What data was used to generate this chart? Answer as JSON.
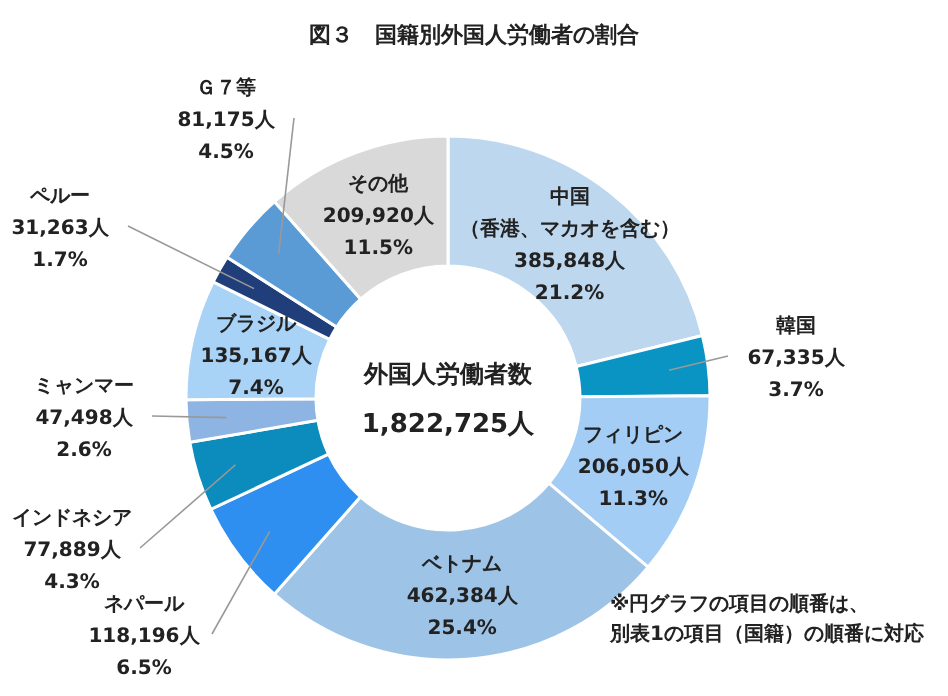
{
  "chart_data": {
    "type": "donut",
    "title": "図３　国籍別外国人労働者の割合",
    "categories": [
      "中国（香港、マカオを含む）",
      "韓国",
      "フィリピン",
      "ベトナム",
      "ネパール",
      "インドネシア",
      "ミャンマー",
      "ブラジル",
      "ペルー",
      "Ｇ７等",
      "その他"
    ],
    "values": [
      385848,
      67335,
      206050,
      462384,
      118196,
      77889,
      47498,
      135167,
      31263,
      81175,
      209920
    ],
    "value_labels": [
      "385,848人\n21.2%",
      "67,335人\n3.7%",
      "206,050人\n11.3%",
      "462,384人\n25.4%",
      "118,196人\n6.5%",
      "77,889人\n4.3%",
      "47,498人\n2.6%",
      "135,167人\n7.4%",
      "31,263人\n1.7%",
      "81,175人\n4.5%",
      "209,920人\n11.5%"
    ],
    "colors": [
      "#bdd7ee",
      "#0a94c4",
      "#a3cdf5",
      "#9dc3e6",
      "#2e8ff0",
      "#0c8cbc",
      "#8db4e2",
      "#a9d2f7",
      "#203f7a",
      "#5b9bd5",
      "#d9d9d9"
    ],
    "annotations": [
      "外国人労働者数",
      "1,822,725人",
      "※円グラフの項目の順番は、別表1の項目（国籍）の順番に対応"
    ]
  }
}
